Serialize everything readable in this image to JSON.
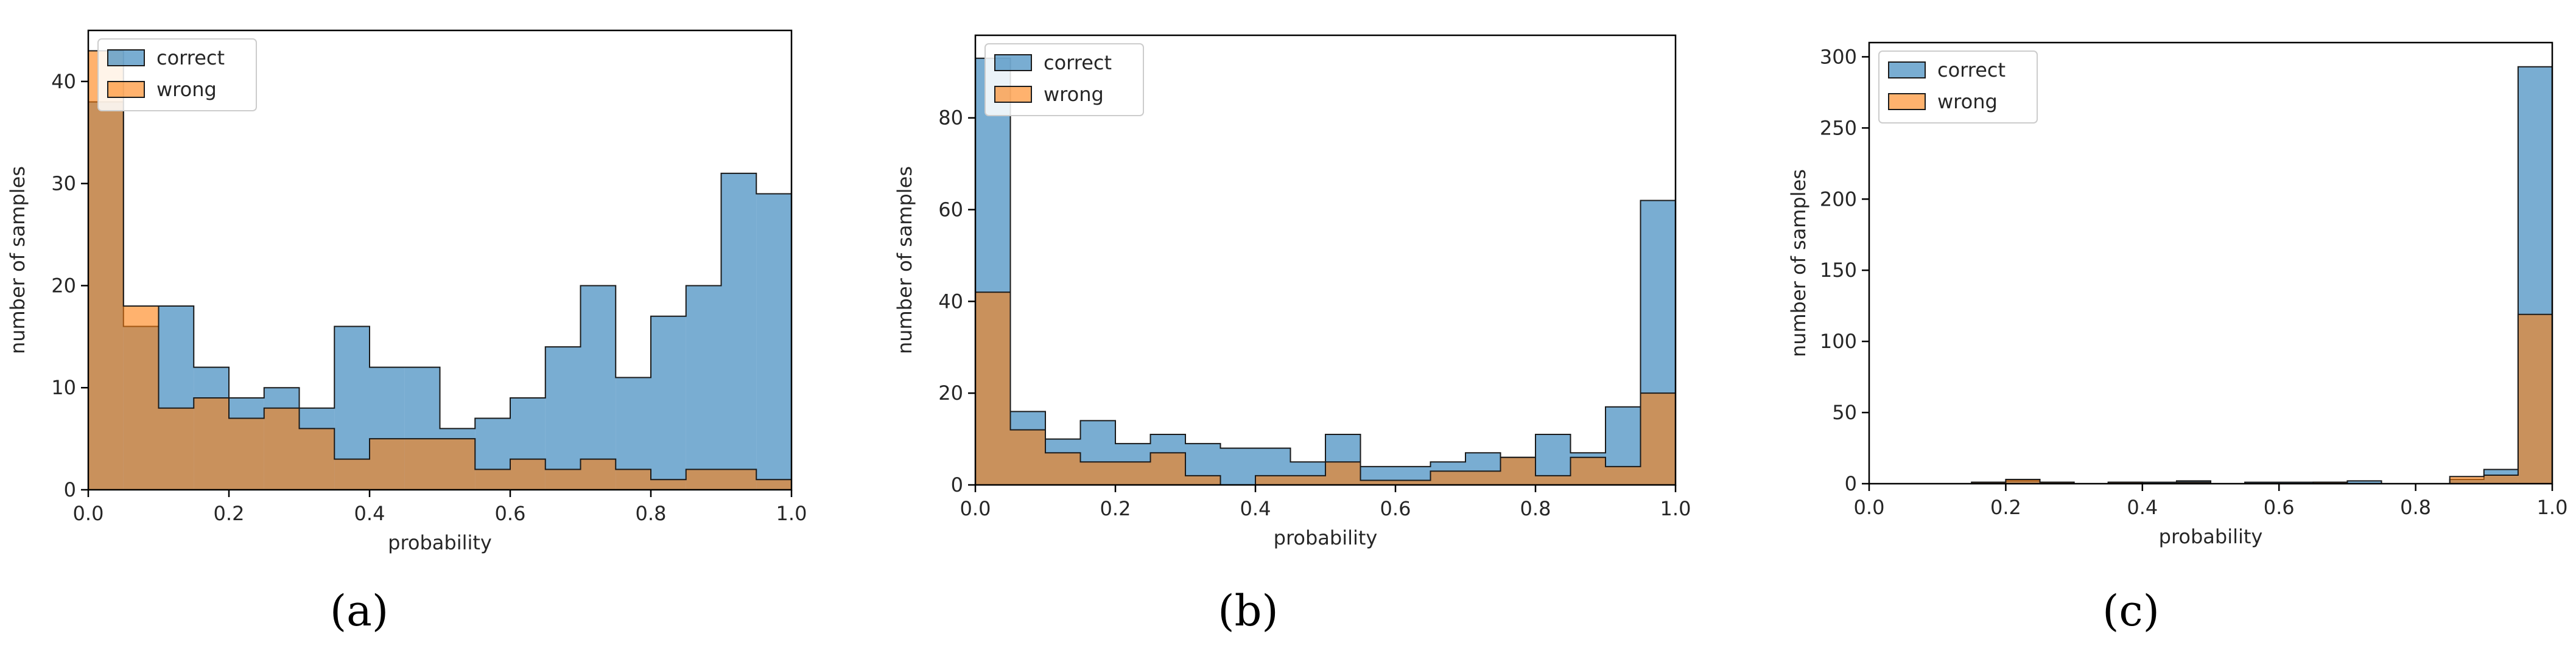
{
  "colors": {
    "correct": "#1f77b4",
    "wrong": "#ff7f0e",
    "axis": "#000000",
    "tick_text": "#262626"
  },
  "chart_data": [
    {
      "type": "bar",
      "panel": "a",
      "caption": "(a)",
      "histtype": "overlaid histogram",
      "xlabel": "probability",
      "ylabel": "number of samples",
      "xlim": [
        0.0,
        1.0
      ],
      "ylim": [
        0,
        45
      ],
      "xticks": [
        "0.0",
        "0.2",
        "0.4",
        "0.6",
        "0.8",
        "1.0"
      ],
      "yticks": [
        "0",
        "10",
        "20",
        "30",
        "40"
      ],
      "ytick_values": [
        0,
        10,
        20,
        30,
        40
      ],
      "bins": 20,
      "legend": {
        "placement": "top-left",
        "entries": [
          "correct",
          "wrong"
        ]
      },
      "series": [
        {
          "name": "correct",
          "values": [
            38,
            16,
            18,
            12,
            9,
            10,
            8,
            16,
            12,
            12,
            6,
            7,
            9,
            14,
            20,
            11,
            17,
            20,
            31,
            29
          ]
        },
        {
          "name": "wrong",
          "values": [
            43,
            18,
            8,
            9,
            7,
            8,
            6,
            3,
            5,
            5,
            5,
            2,
            3,
            2,
            3,
            2,
            1,
            2,
            2,
            1
          ]
        }
      ]
    },
    {
      "type": "bar",
      "panel": "b",
      "caption": "(b)",
      "histtype": "overlaid histogram",
      "xlabel": "probability",
      "ylabel": "number of samples",
      "xlim": [
        0.0,
        1.0
      ],
      "ylim": [
        0,
        98
      ],
      "xticks": [
        "0.0",
        "0.2",
        "0.4",
        "0.6",
        "0.8",
        "1.0"
      ],
      "yticks": [
        "0",
        "20",
        "40",
        "60",
        "80"
      ],
      "ytick_values": [
        0,
        20,
        40,
        60,
        80
      ],
      "bins": 20,
      "legend": {
        "placement": "top-left",
        "entries": [
          "correct",
          "wrong"
        ]
      },
      "series": [
        {
          "name": "correct",
          "values": [
            93,
            16,
            10,
            14,
            9,
            11,
            9,
            8,
            8,
            5,
            11,
            4,
            4,
            5,
            7,
            6,
            11,
            7,
            17,
            62
          ]
        },
        {
          "name": "wrong",
          "values": [
            42,
            12,
            7,
            5,
            5,
            7,
            2,
            0,
            2,
            2,
            5,
            1,
            1,
            3,
            3,
            6,
            2,
            6,
            4,
            20
          ]
        }
      ]
    },
    {
      "type": "bar",
      "panel": "c",
      "caption": "(c)",
      "histtype": "overlaid histogram",
      "xlabel": "probability",
      "ylabel": "number of samples",
      "xlim": [
        0.0,
        1.0
      ],
      "ylim": [
        0,
        310
      ],
      "xticks": [
        "0.0",
        "0.2",
        "0.4",
        "0.6",
        "0.8",
        "1.0"
      ],
      "yticks": [
        "0",
        "50",
        "100",
        "150",
        "200",
        "250",
        "300"
      ],
      "ytick_values": [
        0,
        50,
        100,
        150,
        200,
        250,
        300
      ],
      "bins": 20,
      "legend": {
        "placement": "top-left",
        "entries": [
          "correct",
          "wrong"
        ]
      },
      "series": [
        {
          "name": "correct",
          "values": [
            0,
            0,
            0,
            1,
            2,
            1,
            0,
            1,
            1,
            2,
            0,
            1,
            1,
            1,
            2,
            0,
            0,
            3,
            10,
            293
          ]
        },
        {
          "name": "wrong",
          "values": [
            0,
            0,
            0,
            1,
            3,
            1,
            0,
            1,
            0,
            1,
            0,
            0,
            0,
            1,
            0,
            0,
            0,
            5,
            6,
            119
          ]
        }
      ]
    }
  ]
}
